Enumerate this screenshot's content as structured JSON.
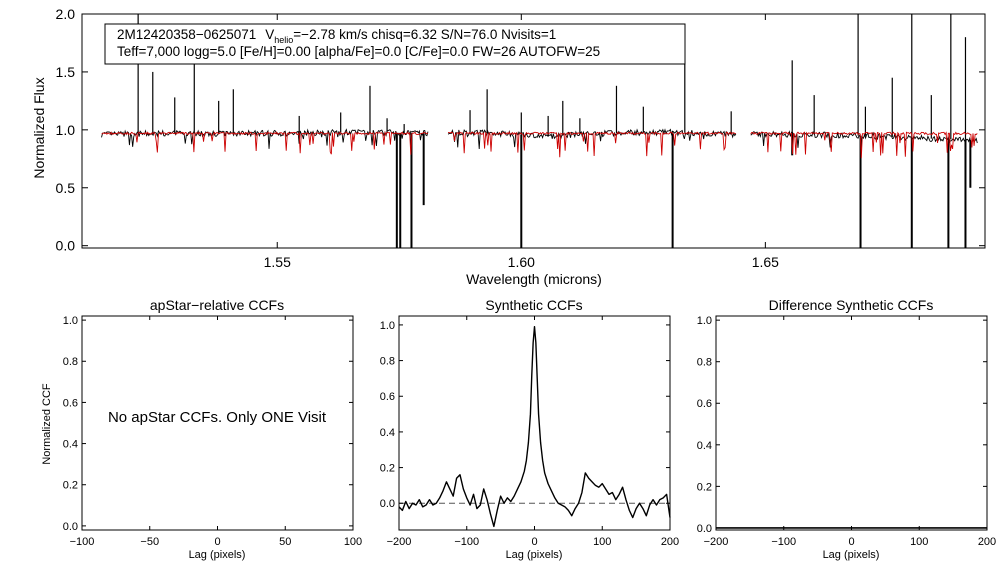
{
  "colors": {
    "observed": "#000000",
    "model": "#cc0000",
    "axis": "#000000",
    "zero_line": "#555555"
  },
  "chart_data": [
    {
      "id": "spectrum",
      "type": "line",
      "title": "",
      "xlabel": "Wavelength (microns)",
      "ylabel": "Normalized Flux",
      "xlim": [
        1.51,
        1.695
      ],
      "ylim": [
        -0.02,
        2.0
      ],
      "x_ticks": [
        1.55,
        1.6,
        1.65
      ],
      "x_tick_labels": [
        "1.55",
        "1.60",
        "1.65"
      ],
      "y_ticks": [
        0.0,
        0.5,
        1.0,
        1.5,
        2.0
      ],
      "y_tick_labels": [
        "0.0",
        "0.5",
        "1.0",
        "1.5",
        "2.0"
      ],
      "info_box": {
        "line1_star": "2M12420358−0625071",
        "line1_v": "V",
        "line1_vsub": "helio",
        "line1_rest": "=−2.78 km/s  chisq=6.32  S/N=76.0  Nvisits=1",
        "line2": "Teff=7,000 logg=5.0 [Fe/H]=0.00 [alpha/Fe]=0.0 [C/Fe]=0.0 FW=26 AUTOFW=25"
      },
      "segments": [
        [
          1.514,
          1.581
        ],
        [
          1.585,
          1.644
        ],
        [
          1.647,
          1.6935
        ]
      ],
      "observed_continuum": [
        [
          1.514,
          0.96
        ],
        [
          1.53,
          0.97
        ],
        [
          1.55,
          0.97
        ],
        [
          1.565,
          0.98
        ],
        [
          1.581,
          0.97
        ],
        [
          1.585,
          0.98
        ],
        [
          1.595,
          0.97
        ],
        [
          1.605,
          0.94
        ],
        [
          1.615,
          0.97
        ],
        [
          1.63,
          0.98
        ],
        [
          1.644,
          0.96
        ],
        [
          1.647,
          0.96
        ],
        [
          1.66,
          0.96
        ],
        [
          1.67,
          0.95
        ],
        [
          1.68,
          0.93
        ],
        [
          1.6935,
          0.91
        ]
      ],
      "model_continuum": [
        [
          1.514,
          0.97
        ],
        [
          1.581,
          0.97
        ],
        [
          1.585,
          0.97
        ],
        [
          1.644,
          0.97
        ],
        [
          1.647,
          0.97
        ],
        [
          1.6935,
          0.97
        ]
      ],
      "emission_spikes": [
        [
          1.5215,
          2.0
        ],
        [
          1.5245,
          1.5
        ],
        [
          1.529,
          1.28
        ],
        [
          1.533,
          1.6
        ],
        [
          1.538,
          1.25
        ],
        [
          1.541,
          1.35
        ],
        [
          1.5545,
          1.12
        ],
        [
          1.563,
          1.15
        ],
        [
          1.569,
          1.38
        ],
        [
          1.5725,
          1.1
        ],
        [
          1.576,
          1.05
        ],
        [
          1.5895,
          1.17
        ],
        [
          1.593,
          1.35
        ],
        [
          1.6,
          1.15
        ],
        [
          1.6055,
          1.12
        ],
        [
          1.6085,
          1.25
        ],
        [
          1.612,
          1.1
        ],
        [
          1.6195,
          1.38
        ],
        [
          1.625,
          1.2
        ],
        [
          1.6335,
          1.72
        ],
        [
          1.643,
          1.16
        ],
        [
          1.6555,
          1.6
        ],
        [
          1.66,
          1.3
        ],
        [
          1.669,
          2.0
        ],
        [
          1.6705,
          1.2
        ],
        [
          1.676,
          1.45
        ],
        [
          1.68,
          2.0
        ],
        [
          1.684,
          1.3
        ],
        [
          1.688,
          2.0
        ],
        [
          1.691,
          1.8
        ]
      ],
      "absorption_spikes": [
        [
          1.5745,
          -0.02
        ],
        [
          1.5752,
          -0.02
        ],
        [
          1.5775,
          -0.02
        ],
        [
          1.58,
          0.35
        ],
        [
          1.6,
          -0.02
        ],
        [
          1.631,
          -0.02
        ],
        [
          1.6555,
          0.78
        ],
        [
          1.6695,
          -0.02
        ],
        [
          1.68,
          -0.02
        ],
        [
          1.6875,
          -0.02
        ],
        [
          1.691,
          -0.02
        ],
        [
          1.692,
          0.5
        ]
      ]
    },
    {
      "id": "ccf_apstar",
      "type": "line",
      "title": "apStar−relative CCFs",
      "xlabel": "Lag (pixels)",
      "ylabel": "Normalized CCF",
      "xlim": [
        -100,
        100
      ],
      "ylim": [
        -0.02,
        1.02
      ],
      "x_ticks": [
        -100,
        -50,
        0,
        50,
        100
      ],
      "x_tick_labels": [
        "−100",
        "−50",
        "0",
        "50",
        "100"
      ],
      "y_ticks": [
        0.0,
        0.2,
        0.4,
        0.6,
        0.8,
        1.0
      ],
      "y_tick_labels": [
        "0.0",
        "0.2",
        "0.4",
        "0.6",
        "0.8",
        "1.0"
      ],
      "annotation": "No apStar CCFs.  Only ONE Visit"
    },
    {
      "id": "ccf_synthetic",
      "type": "line",
      "title": "Synthetic CCFs",
      "xlabel": "Lag (pixels)",
      "ylabel": "",
      "xlim": [
        -200,
        200
      ],
      "ylim": [
        -0.15,
        1.05
      ],
      "x_ticks": [
        -200,
        -100,
        0,
        100,
        200
      ],
      "x_tick_labels": [
        "−200",
        "−100",
        "0",
        "100",
        "200"
      ],
      "y_ticks": [
        0.0,
        0.2,
        0.4,
        0.6,
        0.8,
        1.0
      ],
      "y_tick_labels": [
        "0.0",
        "0.2",
        "0.4",
        "0.6",
        "0.8",
        "1.0"
      ],
      "zero_line": 0.0,
      "series": [
        {
          "x": [
            -200,
            -195,
            -190,
            -185,
            -180,
            -175,
            -170,
            -165,
            -160,
            -155,
            -150,
            -145,
            -140,
            -135,
            -130,
            -125,
            -120,
            -115,
            -110,
            -105,
            -100,
            -95,
            -90,
            -85,
            -80,
            -75,
            -70,
            -65,
            -60,
            -55,
            -50,
            -45,
            -40,
            -35,
            -30,
            -25,
            -20,
            -15,
            -12,
            -9,
            -6,
            -4,
            -2,
            0,
            2,
            4,
            6,
            9,
            12,
            15,
            20,
            25,
            30,
            35,
            40,
            45,
            50,
            55,
            60,
            65,
            70,
            75,
            80,
            85,
            90,
            95,
            100,
            105,
            110,
            115,
            120,
            125,
            130,
            135,
            140,
            145,
            150,
            155,
            160,
            165,
            170,
            175,
            180,
            185,
            190,
            195,
            200
          ],
          "y": [
            -0.02,
            -0.04,
            0.01,
            -0.03,
            0.0,
            -0.01,
            0.02,
            -0.02,
            -0.01,
            0.02,
            -0.01,
            0.0,
            0.03,
            0.07,
            0.12,
            0.08,
            0.04,
            0.14,
            0.16,
            0.08,
            0.03,
            -0.01,
            0.05,
            -0.03,
            -0.01,
            0.08,
            0.02,
            -0.06,
            -0.13,
            -0.04,
            0.04,
            0.0,
            0.03,
            0.01,
            0.04,
            0.08,
            0.12,
            0.18,
            0.24,
            0.34,
            0.5,
            0.72,
            0.9,
            0.99,
            0.9,
            0.7,
            0.5,
            0.34,
            0.24,
            0.17,
            0.11,
            0.07,
            0.03,
            0.0,
            -0.01,
            -0.02,
            -0.04,
            -0.07,
            -0.03,
            0.0,
            0.06,
            0.17,
            0.14,
            0.12,
            0.1,
            0.09,
            0.11,
            0.08,
            0.05,
            0.06,
            0.02,
            0.05,
            0.09,
            0.02,
            -0.04,
            -0.08,
            -0.03,
            0.0,
            -0.03,
            -0.07,
            -0.01,
            0.02,
            -0.01,
            0.02,
            0.03,
            0.05,
            -0.08
          ]
        }
      ]
    },
    {
      "id": "ccf_difference",
      "type": "line",
      "title": "Difference Synthetic CCFs",
      "xlabel": "Lag (pixels)",
      "ylabel": "",
      "xlim": [
        -200,
        200
      ],
      "ylim": [
        -0.01,
        1.02
      ],
      "x_ticks": [
        -200,
        -100,
        0,
        100,
        200
      ],
      "x_tick_labels": [
        "−200",
        "−100",
        "0",
        "100",
        "200"
      ],
      "y_ticks": [
        0.0,
        0.2,
        0.4,
        0.6,
        0.8,
        1.0
      ],
      "y_tick_labels": [
        "0.0",
        "0.2",
        "0.4",
        "0.6",
        "0.8",
        "1.0"
      ],
      "series": [
        {
          "x": [
            -200,
            200
          ],
          "y": [
            0.0,
            0.0
          ]
        }
      ]
    }
  ]
}
